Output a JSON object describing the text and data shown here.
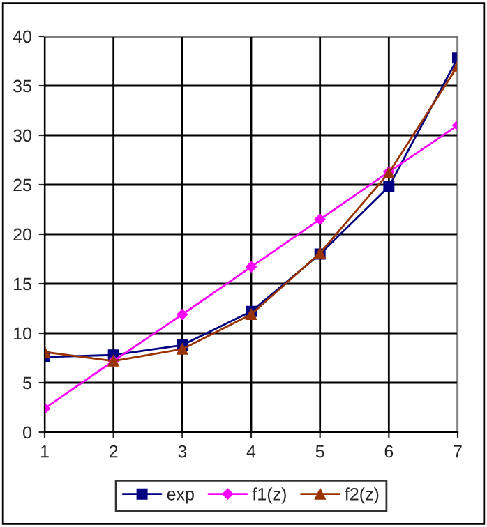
{
  "chart_data": {
    "type": "line",
    "x": [
      1,
      2,
      3,
      4,
      5,
      6,
      7
    ],
    "series": [
      {
        "name": "exp",
        "color": "#000080",
        "marker": "square",
        "values": [
          7.6,
          7.8,
          8.8,
          12.2,
          18.0,
          24.8,
          37.8
        ]
      },
      {
        "name": "f1(z)",
        "color": "#ff00ff",
        "marker": "diamond",
        "values": [
          2.4,
          7.2,
          11.9,
          16.7,
          21.5,
          26.3,
          31.0
        ]
      },
      {
        "name": "f2(z)",
        "color": "#993300",
        "marker": "triangle",
        "values": [
          8.1,
          7.2,
          8.4,
          11.9,
          18.1,
          26.2,
          37.0
        ]
      }
    ],
    "xlim": [
      1,
      7
    ],
    "xticks": [
      1,
      2,
      3,
      4,
      5,
      6,
      7
    ],
    "ylim": [
      0,
      40
    ],
    "yticks": [
      0,
      5,
      10,
      15,
      20,
      25,
      30,
      35,
      40
    ],
    "grid": true,
    "legend": "bottom"
  }
}
